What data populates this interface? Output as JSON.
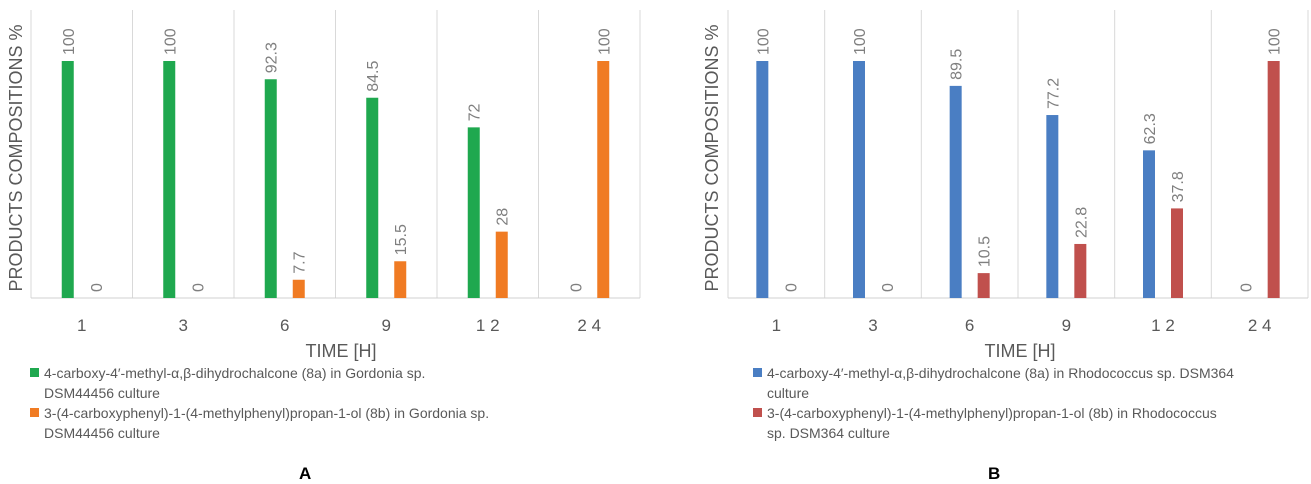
{
  "chart_data": [
    {
      "type": "bar",
      "panel_label": "A",
      "title": "",
      "xlabel": "TIME [H]",
      "ylabel": "PRODUCTS COMPOSITIONS %",
      "ylim": [
        0,
        100
      ],
      "grid": true,
      "legend_position": "bottom",
      "categories": [
        "1",
        "3",
        "6",
        "9",
        "12",
        "24"
      ],
      "category_labels": [
        "1",
        "3",
        "6",
        "9",
        "1 2",
        "2 4"
      ],
      "series": [
        {
          "name": "4-carboxy-4′-methyl-α,β-dihydrochalcone (8a) in Gordonia sp. DSM44456 culture",
          "legend_lines": [
            "4-carboxy-4′-methyl-α,β-dihydrochalcone (8a) in Gordonia sp.",
            "DSM44456 culture"
          ],
          "color": "#1fa84f",
          "values": [
            100,
            100,
            92.3,
            84.5,
            72,
            0
          ],
          "labels": [
            "100",
            "100",
            "92.3",
            "84.5",
            "72",
            ""
          ]
        },
        {
          "name": "3-(4-carboxyphenyl)-1-(4-methylphenyl)propan-1-ol (8b) in Gordonia sp. DSM44456 culture",
          "legend_lines": [
            "3-(4-carboxyphenyl)-1-(4-methylphenyl)propan-1-ol (8b) in Gordonia sp.",
            "DSM44456 culture"
          ],
          "color": "#f07b23",
          "values": [
            0,
            0,
            7.7,
            15.5,
            28,
            100
          ],
          "labels": [
            "0",
            "0",
            "7.7",
            "15.5",
            "28",
            "100"
          ]
        }
      ],
      "zero_bar_labels": [
        "",
        "",
        "",
        "",
        "",
        "0"
      ]
    },
    {
      "type": "bar",
      "panel_label": "B",
      "title": "",
      "xlabel": "TIME [H]",
      "ylabel": "PRODUCTS COMPOSITIONS %",
      "ylim": [
        0,
        100
      ],
      "grid": true,
      "legend_position": "bottom",
      "categories": [
        "1",
        "3",
        "6",
        "9",
        "12",
        "24"
      ],
      "category_labels": [
        "1",
        "3",
        "6",
        "9",
        "1 2",
        "2 4"
      ],
      "series": [
        {
          "name": "4-carboxy-4′-methyl-α,β-dihydrochalcone (8a) in Rhodococcus sp. DSM364 culture",
          "legend_lines": [
            "4-carboxy-4′-methyl-α,β-dihydrochalcone (8a) in Rhodococcus sp. DSM364",
            "culture"
          ],
          "color": "#4a7ec3",
          "values": [
            100,
            100,
            89.5,
            77.2,
            62.3,
            0
          ],
          "labels": [
            "100",
            "100",
            "89.5",
            "77.2",
            "62.3",
            ""
          ]
        },
        {
          "name": "3-(4-carboxyphenyl)-1-(4-methylphenyl)propan-1-ol (8b) in Rhodococcus sp. DSM364 culture",
          "legend_lines": [
            "3-(4-carboxyphenyl)-1-(4-methylphenyl)propan-1-ol (8b) in Rhodococcus",
            "sp. DSM364 culture"
          ],
          "color": "#c0504d",
          "values": [
            0,
            0,
            10.5,
            22.8,
            37.8,
            100
          ],
          "labels": [
            "0",
            "0",
            "10.5",
            "22.8",
            "37.8",
            "100"
          ]
        }
      ],
      "zero_bar_labels": [
        "",
        "",
        "",
        "",
        "",
        "0"
      ]
    }
  ]
}
